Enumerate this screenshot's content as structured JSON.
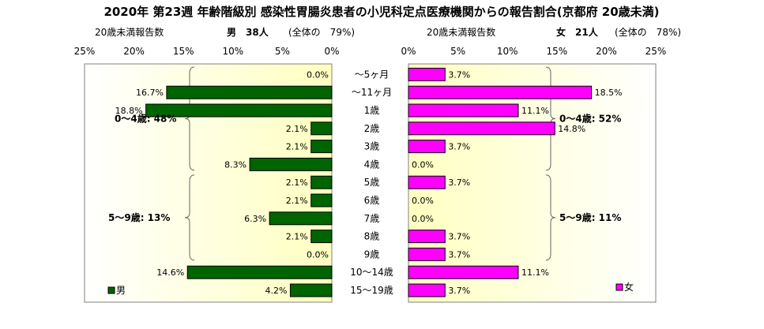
{
  "chart_data": {
    "type": "bar",
    "title": "2020年 第23週 年齢階級別 感染性胃腸炎患者の小児科定点医療機関からの報告割合(京都府 20歳未満)",
    "categories": [
      "～5ヶ月",
      "～11ヶ月",
      "1歳",
      "2歳",
      "3歳",
      "4歳",
      "5歳",
      "6歳",
      "7歳",
      "8歳",
      "9歳",
      "10～14歳",
      "15～19歳"
    ],
    "xlim": [
      0,
      25
    ],
    "ticks": [
      "25%",
      "20%",
      "15%",
      "10%",
      "5%",
      "0%"
    ],
    "ticks_right": [
      "0%",
      "5%",
      "10%",
      "15%",
      "20%",
      "25%"
    ],
    "series": [
      {
        "name": "男",
        "color": "#006400",
        "values": [
          0.0,
          16.7,
          18.8,
          2.1,
          2.1,
          8.3,
          2.1,
          2.1,
          6.3,
          2.1,
          0.0,
          14.6,
          4.2
        ],
        "labels": [
          "0.0%",
          "16.7%",
          "18.8%",
          "2.1%",
          "2.1%",
          "8.3%",
          "2.1%",
          "2.1%",
          "6.3%",
          "2.1%",
          "0.0%",
          "14.6%",
          "4.2%"
        ],
        "subtitle_left": "20歳未満報告数",
        "subtitle_main": "男　38人",
        "subtitle_ratio": "(全体の　79%)",
        "group_labels": [
          "0～4歳: 48%",
          "5～9歳: 13%"
        ]
      },
      {
        "name": "女",
        "color": "#ff00ff",
        "values": [
          3.7,
          18.5,
          11.1,
          14.8,
          3.7,
          0.0,
          3.7,
          0.0,
          0.0,
          3.7,
          3.7,
          11.1,
          3.7
        ],
        "labels": [
          "3.7%",
          "18.5%",
          "11.1%",
          "14.8%",
          "3.7%",
          "0.0%",
          "3.7%",
          "0.0%",
          "0.0%",
          "3.7%",
          "3.7%",
          "11.1%",
          "3.7%"
        ],
        "subtitle_left": "20歳未満報告数",
        "subtitle_main": "女　21人",
        "subtitle_ratio": "(全体の　78%)",
        "group_labels": [
          "0～4歳: 52%",
          "5～9歳: 11%"
        ]
      }
    ],
    "legend": [
      "男",
      "女"
    ]
  }
}
